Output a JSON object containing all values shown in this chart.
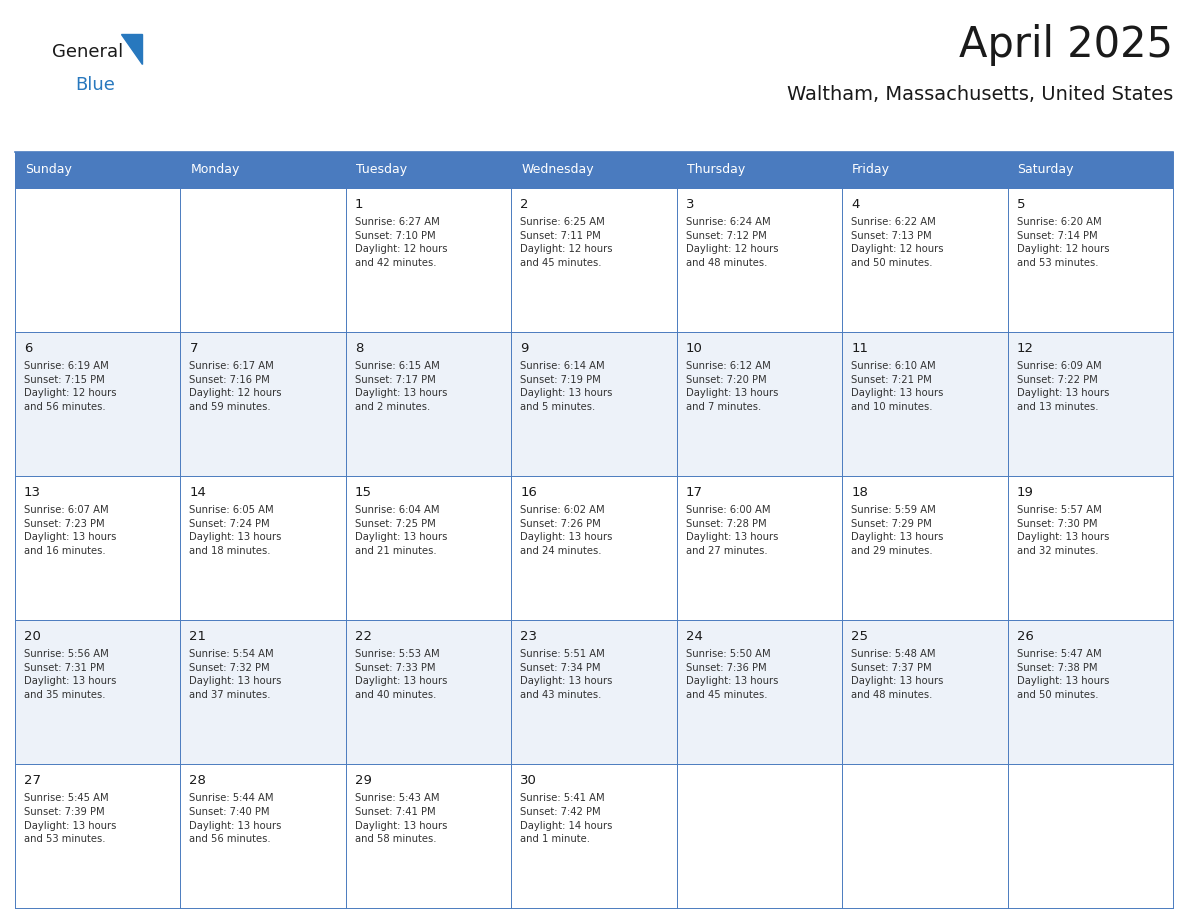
{
  "title": "April 2025",
  "subtitle": "Waltham, Massachusetts, United States",
  "header_bg": "#4a7bbf",
  "header_text_color": "#ffffff",
  "cell_bg_odd": "#edf2f9",
  "cell_bg_even": "#ffffff",
  "border_color": "#4a7bbf",
  "title_color": "#1a1a1a",
  "subtitle_color": "#1a1a1a",
  "day_number_color": "#1a1a1a",
  "cell_text_color": "#333333",
  "logo_general_color": "#1a1a1a",
  "logo_blue_color": "#2878be",
  "logo_triangle_color": "#2878be",
  "day_names": [
    "Sunday",
    "Monday",
    "Tuesday",
    "Wednesday",
    "Thursday",
    "Friday",
    "Saturday"
  ],
  "weeks": [
    [
      {
        "day": null,
        "text": ""
      },
      {
        "day": null,
        "text": ""
      },
      {
        "day": 1,
        "text": "Sunrise: 6:27 AM\nSunset: 7:10 PM\nDaylight: 12 hours\nand 42 minutes."
      },
      {
        "day": 2,
        "text": "Sunrise: 6:25 AM\nSunset: 7:11 PM\nDaylight: 12 hours\nand 45 minutes."
      },
      {
        "day": 3,
        "text": "Sunrise: 6:24 AM\nSunset: 7:12 PM\nDaylight: 12 hours\nand 48 minutes."
      },
      {
        "day": 4,
        "text": "Sunrise: 6:22 AM\nSunset: 7:13 PM\nDaylight: 12 hours\nand 50 minutes."
      },
      {
        "day": 5,
        "text": "Sunrise: 6:20 AM\nSunset: 7:14 PM\nDaylight: 12 hours\nand 53 minutes."
      }
    ],
    [
      {
        "day": 6,
        "text": "Sunrise: 6:19 AM\nSunset: 7:15 PM\nDaylight: 12 hours\nand 56 minutes."
      },
      {
        "day": 7,
        "text": "Sunrise: 6:17 AM\nSunset: 7:16 PM\nDaylight: 12 hours\nand 59 minutes."
      },
      {
        "day": 8,
        "text": "Sunrise: 6:15 AM\nSunset: 7:17 PM\nDaylight: 13 hours\nand 2 minutes."
      },
      {
        "day": 9,
        "text": "Sunrise: 6:14 AM\nSunset: 7:19 PM\nDaylight: 13 hours\nand 5 minutes."
      },
      {
        "day": 10,
        "text": "Sunrise: 6:12 AM\nSunset: 7:20 PM\nDaylight: 13 hours\nand 7 minutes."
      },
      {
        "day": 11,
        "text": "Sunrise: 6:10 AM\nSunset: 7:21 PM\nDaylight: 13 hours\nand 10 minutes."
      },
      {
        "day": 12,
        "text": "Sunrise: 6:09 AM\nSunset: 7:22 PM\nDaylight: 13 hours\nand 13 minutes."
      }
    ],
    [
      {
        "day": 13,
        "text": "Sunrise: 6:07 AM\nSunset: 7:23 PM\nDaylight: 13 hours\nand 16 minutes."
      },
      {
        "day": 14,
        "text": "Sunrise: 6:05 AM\nSunset: 7:24 PM\nDaylight: 13 hours\nand 18 minutes."
      },
      {
        "day": 15,
        "text": "Sunrise: 6:04 AM\nSunset: 7:25 PM\nDaylight: 13 hours\nand 21 minutes."
      },
      {
        "day": 16,
        "text": "Sunrise: 6:02 AM\nSunset: 7:26 PM\nDaylight: 13 hours\nand 24 minutes."
      },
      {
        "day": 17,
        "text": "Sunrise: 6:00 AM\nSunset: 7:28 PM\nDaylight: 13 hours\nand 27 minutes."
      },
      {
        "day": 18,
        "text": "Sunrise: 5:59 AM\nSunset: 7:29 PM\nDaylight: 13 hours\nand 29 minutes."
      },
      {
        "day": 19,
        "text": "Sunrise: 5:57 AM\nSunset: 7:30 PM\nDaylight: 13 hours\nand 32 minutes."
      }
    ],
    [
      {
        "day": 20,
        "text": "Sunrise: 5:56 AM\nSunset: 7:31 PM\nDaylight: 13 hours\nand 35 minutes."
      },
      {
        "day": 21,
        "text": "Sunrise: 5:54 AM\nSunset: 7:32 PM\nDaylight: 13 hours\nand 37 minutes."
      },
      {
        "day": 22,
        "text": "Sunrise: 5:53 AM\nSunset: 7:33 PM\nDaylight: 13 hours\nand 40 minutes."
      },
      {
        "day": 23,
        "text": "Sunrise: 5:51 AM\nSunset: 7:34 PM\nDaylight: 13 hours\nand 43 minutes."
      },
      {
        "day": 24,
        "text": "Sunrise: 5:50 AM\nSunset: 7:36 PM\nDaylight: 13 hours\nand 45 minutes."
      },
      {
        "day": 25,
        "text": "Sunrise: 5:48 AM\nSunset: 7:37 PM\nDaylight: 13 hours\nand 48 minutes."
      },
      {
        "day": 26,
        "text": "Sunrise: 5:47 AM\nSunset: 7:38 PM\nDaylight: 13 hours\nand 50 minutes."
      }
    ],
    [
      {
        "day": 27,
        "text": "Sunrise: 5:45 AM\nSunset: 7:39 PM\nDaylight: 13 hours\nand 53 minutes."
      },
      {
        "day": 28,
        "text": "Sunrise: 5:44 AM\nSunset: 7:40 PM\nDaylight: 13 hours\nand 56 minutes."
      },
      {
        "day": 29,
        "text": "Sunrise: 5:43 AM\nSunset: 7:41 PM\nDaylight: 13 hours\nand 58 minutes."
      },
      {
        "day": 30,
        "text": "Sunrise: 5:41 AM\nSunset: 7:42 PM\nDaylight: 14 hours\nand 1 minute."
      },
      {
        "day": null,
        "text": ""
      },
      {
        "day": null,
        "text": ""
      },
      {
        "day": null,
        "text": ""
      }
    ]
  ]
}
